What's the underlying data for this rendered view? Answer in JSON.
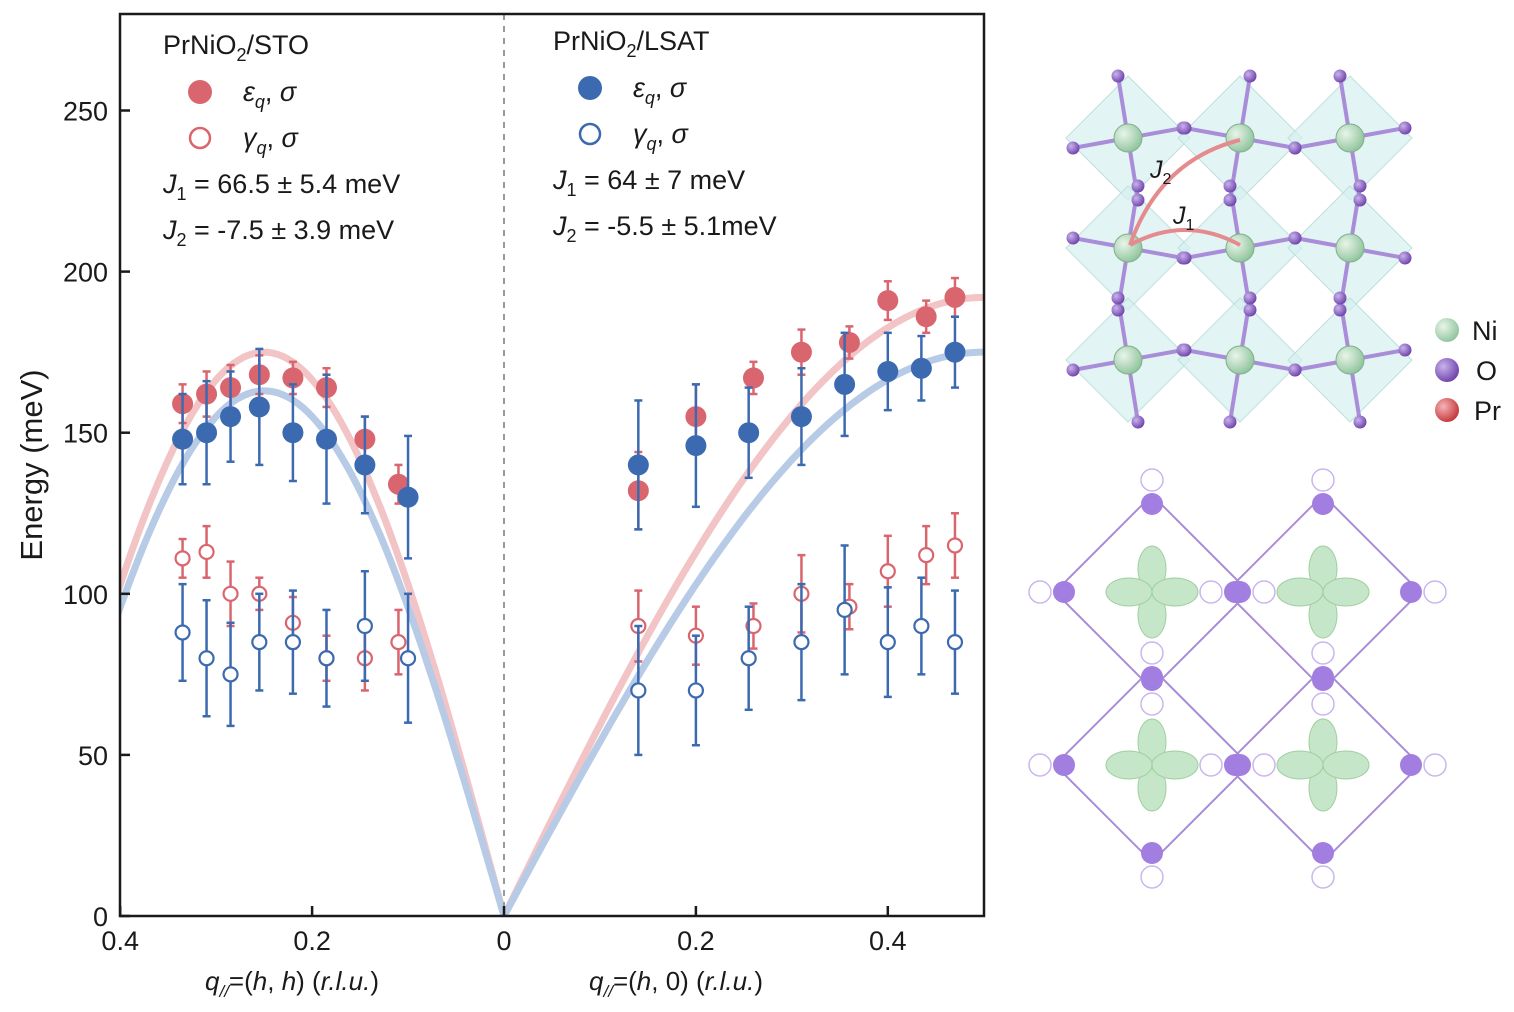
{
  "chart_data": {
    "type": "scatter",
    "ylabel": "Energy (meV)",
    "ylim": [
      0,
      275
    ],
    "yticks": [
      0,
      50,
      100,
      150,
      200,
      250
    ],
    "left_panel": {
      "xlabel": "q//=(h, h) (r.l.u.)",
      "xlim": [
        0.4,
        0
      ],
      "xticks": [
        0.4,
        0.2,
        0
      ],
      "tick_labels": [
        "0.4",
        "0.2",
        "0"
      ]
    },
    "right_panel": {
      "xlabel": "q//=(h, 0) (r.l.u.)",
      "xlim": [
        0,
        0.5
      ],
      "xticks": [
        0.2,
        0.4
      ],
      "tick_labels": [
        "0.2",
        "0.4"
      ]
    },
    "colors": {
      "sto": "#d9666e",
      "lsat": "#3c6ab0",
      "sto_fit": "#f2c4c6",
      "lsat_fit": "#b7cbe6"
    },
    "legend_left": {
      "sample": "PrNiO2/STO",
      "entry1": "εq, σ",
      "entry2": "γq, σ",
      "j1": "J1 = 66.5 ± 5.4 meV",
      "j2": "J2 = -7.5 ± 3.9 meV"
    },
    "legend_right": {
      "sample": "PrNiO2/LSAT",
      "entry1": "εq, σ",
      "entry2": "γq, σ",
      "j1": "J1 = 64 ± 7 meV",
      "j2": "J2 = -5.5 ± 5.1meV"
    },
    "series": [
      {
        "panel": "left",
        "sample": "STO",
        "marker": "filled",
        "points": [
          {
            "x": 0.335,
            "y": 159,
            "err": 6
          },
          {
            "x": 0.31,
            "y": 162,
            "err": 7
          },
          {
            "x": 0.285,
            "y": 164,
            "err": 7
          },
          {
            "x": 0.255,
            "y": 168,
            "err": 6
          },
          {
            "x": 0.22,
            "y": 167,
            "err": 5
          },
          {
            "x": 0.185,
            "y": 164,
            "err": 6
          },
          {
            "x": 0.145,
            "y": 148,
            "err": 7
          },
          {
            "x": 0.11,
            "y": 134,
            "err": 6
          }
        ]
      },
      {
        "panel": "left",
        "sample": "LSAT",
        "marker": "filled",
        "points": [
          {
            "x": 0.335,
            "y": 148,
            "err": 14
          },
          {
            "x": 0.31,
            "y": 150,
            "err": 16
          },
          {
            "x": 0.285,
            "y": 155,
            "err": 14
          },
          {
            "x": 0.255,
            "y": 158,
            "err": 18
          },
          {
            "x": 0.22,
            "y": 150,
            "err": 15
          },
          {
            "x": 0.185,
            "y": 148,
            "err": 20
          },
          {
            "x": 0.145,
            "y": 140,
            "err": 15
          },
          {
            "x": 0.1,
            "y": 130,
            "err": 19
          }
        ]
      },
      {
        "panel": "left",
        "sample": "STO",
        "marker": "open",
        "points": [
          {
            "x": 0.335,
            "y": 111,
            "err": 6
          },
          {
            "x": 0.31,
            "y": 113,
            "err": 8
          },
          {
            "x": 0.285,
            "y": 100,
            "err": 10
          },
          {
            "x": 0.255,
            "y": 100,
            "err": 5
          },
          {
            "x": 0.22,
            "y": 91,
            "err": 8
          },
          {
            "x": 0.185,
            "y": 80,
            "err": 7
          },
          {
            "x": 0.145,
            "y": 80,
            "err": 10
          },
          {
            "x": 0.11,
            "y": 85,
            "err": 10
          }
        ]
      },
      {
        "panel": "left",
        "sample": "LSAT",
        "marker": "open",
        "points": [
          {
            "x": 0.335,
            "y": 88,
            "err": 15
          },
          {
            "x": 0.31,
            "y": 80,
            "err": 18
          },
          {
            "x": 0.285,
            "y": 75,
            "err": 16
          },
          {
            "x": 0.255,
            "y": 85,
            "err": 15
          },
          {
            "x": 0.22,
            "y": 85,
            "err": 16
          },
          {
            "x": 0.185,
            "y": 80,
            "err": 15
          },
          {
            "x": 0.145,
            "y": 90,
            "err": 17
          },
          {
            "x": 0.1,
            "y": 80,
            "err": 20
          }
        ]
      },
      {
        "panel": "right",
        "sample": "STO",
        "marker": "filled",
        "points": [
          {
            "x": 0.14,
            "y": 132,
            "err": 12
          },
          {
            "x": 0.2,
            "y": 155,
            "err": 10
          },
          {
            "x": 0.26,
            "y": 167,
            "err": 5
          },
          {
            "x": 0.31,
            "y": 175,
            "err": 7
          },
          {
            "x": 0.36,
            "y": 178,
            "err": 5
          },
          {
            "x": 0.4,
            "y": 191,
            "err": 6
          },
          {
            "x": 0.44,
            "y": 186,
            "err": 5
          },
          {
            "x": 0.47,
            "y": 192,
            "err": 6
          }
        ]
      },
      {
        "panel": "right",
        "sample": "LSAT",
        "marker": "filled",
        "points": [
          {
            "x": 0.14,
            "y": 140,
            "err": 20
          },
          {
            "x": 0.2,
            "y": 146,
            "err": 19
          },
          {
            "x": 0.255,
            "y": 150,
            "err": 14
          },
          {
            "x": 0.31,
            "y": 155,
            "err": 15
          },
          {
            "x": 0.355,
            "y": 165,
            "err": 16
          },
          {
            "x": 0.4,
            "y": 169,
            "err": 12
          },
          {
            "x": 0.435,
            "y": 170,
            "err": 10
          },
          {
            "x": 0.47,
            "y": 175,
            "err": 11
          }
        ]
      },
      {
        "panel": "right",
        "sample": "STO",
        "marker": "open",
        "points": [
          {
            "x": 0.14,
            "y": 90,
            "err": 11
          },
          {
            "x": 0.2,
            "y": 87,
            "err": 9
          },
          {
            "x": 0.26,
            "y": 90,
            "err": 7
          },
          {
            "x": 0.31,
            "y": 100,
            "err": 12
          },
          {
            "x": 0.36,
            "y": 96,
            "err": 7
          },
          {
            "x": 0.4,
            "y": 107,
            "err": 11
          },
          {
            "x": 0.44,
            "y": 112,
            "err": 9
          },
          {
            "x": 0.47,
            "y": 115,
            "err": 10
          }
        ]
      },
      {
        "panel": "right",
        "sample": "LSAT",
        "marker": "open",
        "points": [
          {
            "x": 0.14,
            "y": 70,
            "err": 20
          },
          {
            "x": 0.2,
            "y": 70,
            "err": 17
          },
          {
            "x": 0.255,
            "y": 80,
            "err": 16
          },
          {
            "x": 0.31,
            "y": 85,
            "err": 18
          },
          {
            "x": 0.355,
            "y": 95,
            "err": 20
          },
          {
            "x": 0.4,
            "y": 85,
            "err": 17
          },
          {
            "x": 0.435,
            "y": 90,
            "err": 15
          },
          {
            "x": 0.47,
            "y": 85,
            "err": 16
          }
        ]
      }
    ],
    "fits": [
      {
        "sample": "STO",
        "peak_left": 175,
        "plateau_right": 192
      },
      {
        "sample": "LSAT",
        "peak_left": 163,
        "plateau_right": 175
      }
    ]
  },
  "lattice_legend": [
    {
      "label": "Ni",
      "color": "#8fc39b"
    },
    {
      "label": "O",
      "color": "#7b52b5"
    },
    {
      "label": "Pr",
      "color": "#d0444a"
    }
  ],
  "lattice_labels": {
    "j1": "J1",
    "j2": "J2"
  }
}
